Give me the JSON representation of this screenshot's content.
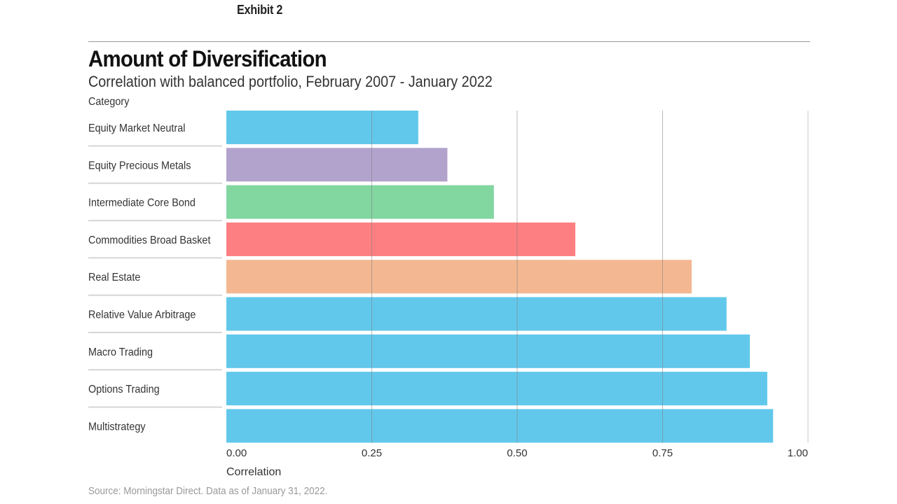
{
  "exhibit": "Exhibit 2",
  "chart_data": {
    "type": "bar",
    "orientation": "horizontal",
    "title": "Amount of Diversification",
    "subtitle": "Correlation with balanced portfolio, February 2007 - January 2022",
    "category_header": "Category",
    "xlabel": "Correlation",
    "xlim": [
      0,
      1
    ],
    "ticks": [
      "0.00",
      "0.25",
      "0.50",
      "0.75",
      "1.00"
    ],
    "tick_values": [
      0,
      0.25,
      0.5,
      0.75,
      1.0
    ],
    "grid": true,
    "categories": [
      "Equity Market Neutral",
      "Equity Precious Metals",
      "Intermediate Core Bond",
      "Commodities Broad Basket",
      "Real Estate",
      "Relative Value Arbitrage",
      "Macro Trading",
      "Options Trading",
      "Multistrategy"
    ],
    "values": [
      0.33,
      0.38,
      0.46,
      0.6,
      0.8,
      0.86,
      0.9,
      0.93,
      0.94
    ],
    "colors": [
      "#62c8eb",
      "#b2a3cd",
      "#82d6a0",
      "#fd7f82",
      "#f3b892",
      "#62c8eb",
      "#62c8eb",
      "#62c8eb",
      "#62c8eb"
    ]
  },
  "source": "Source: Morningstar Direct. Data as of January 31, 2022."
}
